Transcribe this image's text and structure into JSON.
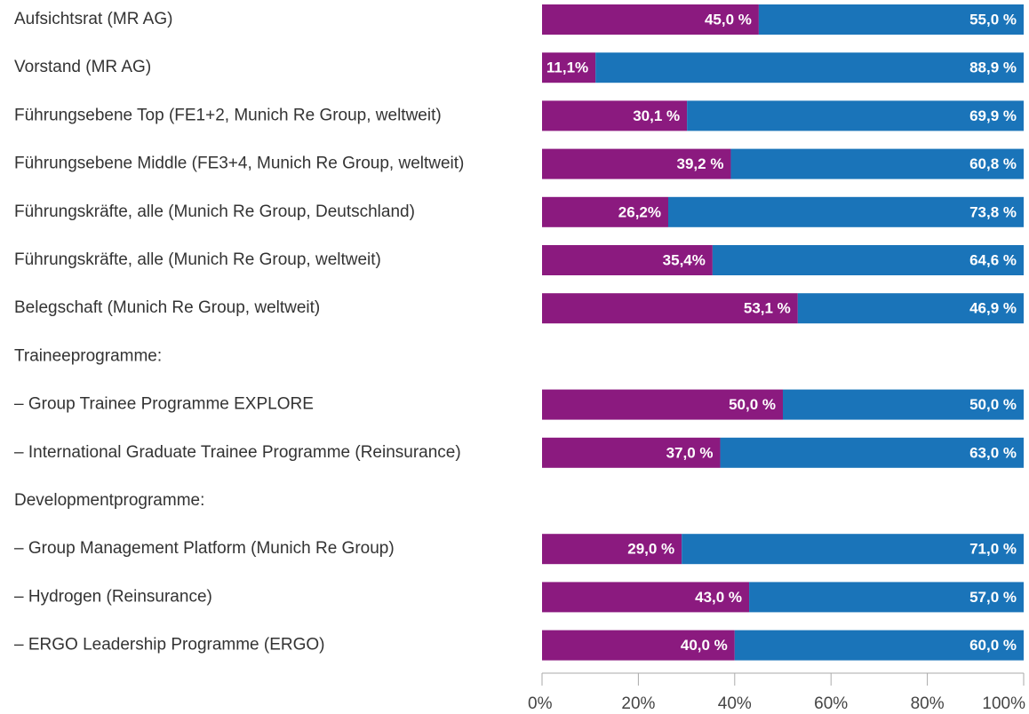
{
  "chart_data": {
    "type": "stacked-barh",
    "categories": [
      "Aufsichtsrat (MR AG)",
      "Vorstand (MR AG)",
      "Führungsebene Top (FE1+2, Munich Re Group, weltweit)",
      "Führungsebene Middle (FE3+4, Munich Re Group, weltweit)",
      "Führungskräfte, alle (Munich Re Group, Deutschland)",
      "Führungskräfte, alle (Munich Re Group, weltweit)",
      "Belegschaft (Munich Re Group, weltweit)",
      "Traineeprogramme:",
      "– Group Trainee Programme EXPLORE",
      "– International Graduate Trainee Programme (Reinsurance)",
      "Developmentprogramme:",
      "– Group Management Platform (Munich Re Group)",
      "– Hydrogen (Reinsurance)",
      "– ERGO Leadership Programme (ERGO)"
    ],
    "series": [
      {
        "color": "#8b1a7f",
        "values": [
          45.0,
          11.1,
          30.1,
          39.2,
          26.2,
          35.4,
          53.1,
          null,
          50.0,
          37.0,
          null,
          29.0,
          43.0,
          40.0
        ],
        "value_labels": [
          "45,0 %",
          "11,1%",
          "30,1 %",
          "39,2 %",
          "26,2%",
          "35,4%",
          "53,1 %",
          null,
          "50,0 %",
          "37,0 %",
          null,
          "29,0 %",
          "43,0 %",
          "40,0 %"
        ]
      },
      {
        "color": "#1a74b9",
        "values": [
          55.0,
          88.9,
          69.9,
          60.8,
          73.8,
          64.6,
          46.9,
          null,
          50.0,
          63.0,
          null,
          71.0,
          57.0,
          60.0
        ],
        "value_labels": [
          "55,0 %",
          "88,9 %",
          "69,9 %",
          "60,8 %",
          "73,8 %",
          "64,6 %",
          "46,9 %",
          null,
          "50,0 %",
          "63,0 %",
          null,
          "71,0 %",
          "57,0 %",
          "60,0 %"
        ]
      }
    ],
    "xlim": [
      0,
      100
    ],
    "xticks": [
      {
        "value": 0,
        "label": "0%"
      },
      {
        "value": 20,
        "label": "20%"
      },
      {
        "value": 40,
        "label": "40%"
      },
      {
        "value": 60,
        "label": "60%"
      },
      {
        "value": 80,
        "label": "80%"
      },
      {
        "value": 100,
        "label": "100%"
      }
    ]
  }
}
